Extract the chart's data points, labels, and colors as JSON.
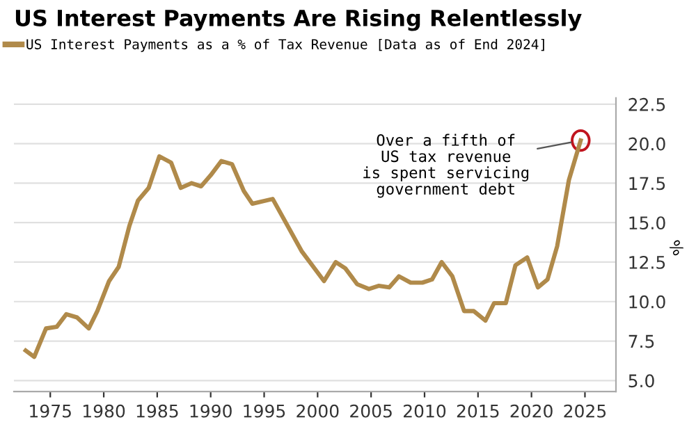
{
  "chart_data": {
    "type": "line",
    "title": "US Interest Payments Are Rising Relentlessly",
    "ylabel": "%",
    "x": [
      1972.7,
      1973.5,
      1974.6,
      1975.6,
      1976.5,
      1977.5,
      1978.6,
      1979.4,
      1980.5,
      1981.4,
      1982.4,
      1983.2,
      1984.2,
      1985.2,
      1986.3,
      1987.2,
      1988.2,
      1989.1,
      1990,
      1991,
      1992,
      1993.1,
      1993.9,
      1995.8,
      1998.5,
      2000.6,
      2001.7,
      2002.6,
      2003.7,
      2004.8,
      2005.7,
      2006.7,
      2007.6,
      2008.7,
      2009.8,
      2010.7,
      2011.6,
      2012.6,
      2013.7,
      2014.6,
      2015.7,
      2016.5,
      2017.6,
      2018.5,
      2019.6,
      2020.6,
      2021.5,
      2022.4,
      2023.5,
      2024.6
    ],
    "series": [
      {
        "name": "US Interest Payments as a % of Tax Revenue [Data as of End 2024]",
        "color": "#b08a4a",
        "values": [
          6.9,
          6.5,
          8.3,
          8.4,
          9.2,
          9.0,
          8.3,
          9.4,
          11.3,
          12.2,
          14.8,
          16.4,
          17.2,
          19.2,
          18.8,
          17.2,
          17.5,
          17.3,
          18.0,
          18.9,
          18.7,
          17.0,
          16.2,
          16.5,
          13.2,
          11.3,
          12.5,
          12.1,
          11.1,
          10.8,
          11.0,
          10.9,
          11.6,
          11.2,
          11.2,
          11.4,
          12.5,
          11.6,
          9.4,
          9.4,
          8.8,
          9.9,
          9.9,
          12.3,
          12.8,
          10.9,
          11.4,
          13.5,
          17.7,
          20.2
        ]
      }
    ],
    "xlim": [
      1971.6,
      2027.9
    ],
    "ylim": [
      4.3,
      22.9
    ],
    "xticks": [
      1975,
      1980,
      1985,
      1990,
      1995,
      2000,
      2005,
      2010,
      2015,
      2020,
      2025
    ],
    "yticks": [
      {
        "value": 5,
        "label": "5.0"
      },
      {
        "value": 7.5,
        "label": "7.5"
      },
      {
        "value": 10,
        "label": "10.0"
      },
      {
        "value": 12.5,
        "label": "12.5"
      },
      {
        "value": 15,
        "label": "15.0"
      },
      {
        "value": 17.5,
        "label": "17.5"
      },
      {
        "value": 20,
        "label": "20.0"
      },
      {
        "value": 22.5,
        "label": "22.5"
      }
    ],
    "grid": "y",
    "legend": "top left",
    "annotations": [
      {
        "text": "Over a fifth of\nUS tax revenue\nis spent servicing\ngovernment debt",
        "x": 2024.6,
        "y": 20.2
      }
    ]
  }
}
